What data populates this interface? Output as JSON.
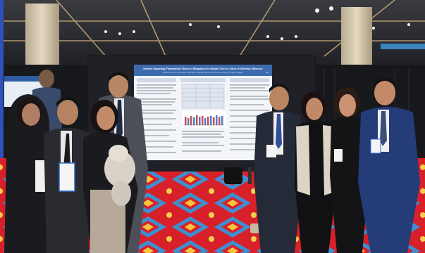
{
  "photo": {
    "poster": {
      "title": "Factors Impacting Pharmacists' Roles in Mitigating the Opioid Crisis in Cities of Differing Affluence",
      "authors": "Nathan Thai-Lam, Luci A. Johnson, Bella Yoon, Tiffany Ndao, Mitchell Cho, Tran Lin, Emily Tran, Dr. Bryan T. Nguyen",
      "institution": "UCI"
    },
    "colors": {
      "carpet_red": "#d8202a",
      "carpet_blue": "#3d8fd0",
      "poster_header": "#3d6bb0",
      "ceiling": "#2a2b30",
      "suit_navy": "#243c78"
    }
  }
}
